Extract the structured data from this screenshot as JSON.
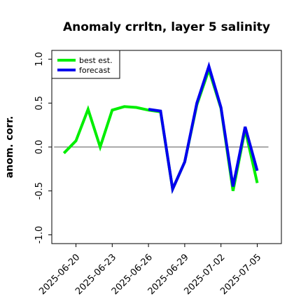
{
  "chart_data": {
    "type": "line",
    "title": "Anomaly crrltn, layer 5 salinity",
    "ylabel": "anom. corr.",
    "xlabel": "",
    "ylim": [
      -1.1,
      1.1
    ],
    "yticks": [
      -1.0,
      -0.5,
      0.0,
      0.5,
      1.0
    ],
    "ytick_labels": [
      "-1.0",
      "-0.5",
      "0.0",
      "0.5",
      "1.0"
    ],
    "xlim": [
      "2025-06-18",
      "2025-07-07"
    ],
    "xticks": [
      {
        "date": "2025-06-20",
        "label": "2025-06-20",
        "color": "#000000"
      },
      {
        "date": "2025-06-23",
        "label": "2025-06-23",
        "color": "#000000"
      },
      {
        "date": "2025-06-26",
        "label": "2025-06-26",
        "color": "#2e8b2e"
      },
      {
        "date": "2025-06-29",
        "label": "2025-06-29",
        "color": "#000000"
      },
      {
        "date": "2025-07-02",
        "label": "2025-07-02",
        "color": "#000000"
      },
      {
        "date": "2025-07-05",
        "label": "2025-07-05",
        "color": "#000000"
      }
    ],
    "reference_line": 0.0,
    "grid": false,
    "legend_position": "top-left",
    "series": [
      {
        "name": "best est.",
        "color": "#00ee00",
        "x": [
          "2025-06-19",
          "2025-06-20",
          "2025-06-21",
          "2025-06-22",
          "2025-06-23",
          "2025-06-24",
          "2025-06-25",
          "2025-06-26",
          "2025-06-27",
          "2025-06-28",
          "2025-06-29",
          "2025-06-30",
          "2025-07-01",
          "2025-07-02",
          "2025-07-03",
          "2025-07-04",
          "2025-07-05"
        ],
        "values": [
          -0.07,
          0.07,
          0.43,
          0.0,
          0.42,
          0.46,
          0.45,
          0.42,
          0.4,
          -0.48,
          -0.17,
          0.48,
          0.88,
          0.44,
          -0.5,
          0.2,
          -0.41
        ]
      },
      {
        "name": "forecast",
        "color": "#0000ee",
        "x": [
          "2025-06-26",
          "2025-06-27",
          "2025-06-28",
          "2025-06-29",
          "2025-06-30",
          "2025-07-01",
          "2025-07-02",
          "2025-07-03",
          "2025-07-04",
          "2025-07-05"
        ],
        "values": [
          0.43,
          0.41,
          -0.48,
          -0.17,
          0.5,
          0.92,
          0.45,
          -0.45,
          0.23,
          -0.27
        ]
      }
    ]
  }
}
